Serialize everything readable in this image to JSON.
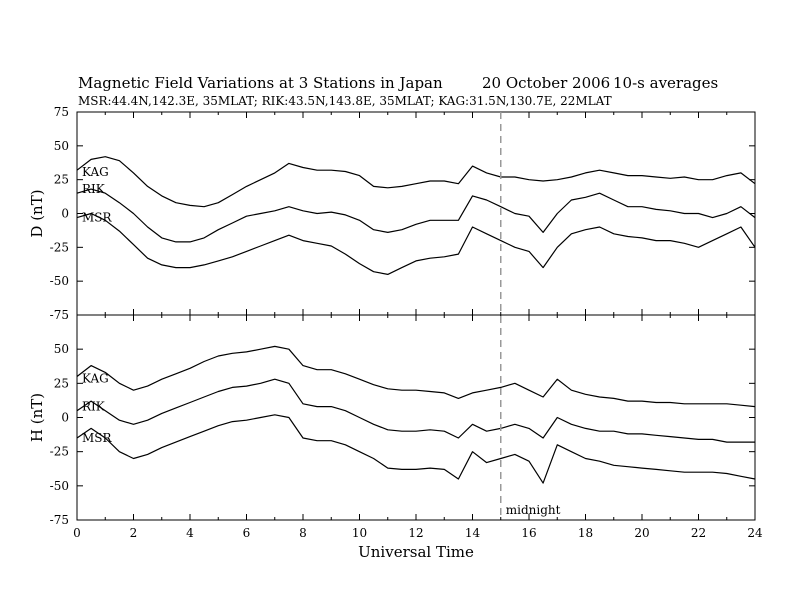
{
  "header": {
    "title": "Magnetic Field Variations at 3 Stations in Japan",
    "date": "20 October 2006",
    "averaging": "10-s averages",
    "stations": "MSR:44.4N,142.3E, 35MLAT;  RIK:43.5N,143.8E, 35MLAT;  KAG:31.5N,130.7E, 22MLAT"
  },
  "annotations": {
    "midnight_label": "midnight",
    "midnight_ut": 15
  },
  "chart_data": [
    {
      "type": "line",
      "ylabel": "D (nT)",
      "xlabel": "",
      "xlim": [
        0,
        24
      ],
      "ylim": [
        -75,
        75
      ],
      "yticks": [
        75,
        50,
        25,
        0,
        -25,
        -50,
        -75
      ],
      "x": [
        0,
        0.5,
        1,
        1.5,
        2,
        2.5,
        3,
        3.5,
        4,
        4.5,
        5,
        5.5,
        6,
        6.5,
        7,
        7.5,
        8,
        8.5,
        9,
        9.5,
        10,
        10.5,
        11,
        11.5,
        12,
        12.5,
        13,
        13.5,
        14,
        14.5,
        15,
        15.5,
        16,
        16.5,
        17,
        17.5,
        18,
        18.5,
        19,
        19.5,
        20,
        20.5,
        21,
        21.5,
        22,
        22.5,
        23,
        23.5,
        24
      ],
      "series": [
        {
          "name": "KAG",
          "values": [
            32,
            40,
            42,
            39,
            30,
            20,
            13,
            8,
            6,
            5,
            8,
            14,
            20,
            25,
            30,
            37,
            34,
            32,
            32,
            31,
            28,
            20,
            19,
            20,
            22,
            24,
            24,
            22,
            35,
            30,
            27,
            27,
            25,
            24,
            25,
            27,
            30,
            32,
            30,
            28,
            28,
            27,
            26,
            27,
            25,
            25,
            28,
            30,
            22
          ]
        },
        {
          "name": "RIK",
          "values": [
            15,
            18,
            15,
            8,
            0,
            -10,
            -18,
            -21,
            -21,
            -18,
            -12,
            -7,
            -2,
            0,
            2,
            5,
            2,
            0,
            1,
            -1,
            -5,
            -12,
            -14,
            -12,
            -8,
            -5,
            -5,
            -5,
            13,
            10,
            5,
            0,
            -2,
            -14,
            0,
            10,
            12,
            15,
            10,
            5,
            5,
            3,
            2,
            0,
            0,
            -3,
            0,
            5,
            -3
          ]
        },
        {
          "name": "MSR",
          "values": [
            -3,
            0,
            -5,
            -13,
            -23,
            -33,
            -38,
            -40,
            -40,
            -38,
            -35,
            -32,
            -28,
            -24,
            -20,
            -16,
            -20,
            -22,
            -24,
            -30,
            -37,
            -43,
            -45,
            -40,
            -35,
            -33,
            -32,
            -30,
            -10,
            -15,
            -20,
            -25,
            -28,
            -40,
            -25,
            -15,
            -12,
            -10,
            -15,
            -17,
            -18,
            -20,
            -20,
            -22,
            -25,
            -20,
            -15,
            -10,
            -25
          ]
        }
      ]
    },
    {
      "type": "line",
      "ylabel": "H (nT)",
      "xlabel": "Universal Time",
      "xlim": [
        0,
        24
      ],
      "ylim": [
        -75,
        75
      ],
      "yticks": [
        50,
        25,
        0,
        -25,
        -50,
        -75
      ],
      "xticks": [
        0,
        2,
        4,
        6,
        8,
        10,
        12,
        14,
        16,
        18,
        20,
        22,
        24
      ],
      "x": [
        0,
        0.5,
        1,
        1.5,
        2,
        2.5,
        3,
        3.5,
        4,
        4.5,
        5,
        5.5,
        6,
        6.5,
        7,
        7.5,
        8,
        8.5,
        9,
        9.5,
        10,
        10.5,
        11,
        11.5,
        12,
        12.5,
        13,
        13.5,
        14,
        14.5,
        15,
        15.5,
        16,
        16.5,
        17,
        17.5,
        18,
        18.5,
        19,
        19.5,
        20,
        20.5,
        21,
        21.5,
        22,
        22.5,
        23,
        23.5,
        24
      ],
      "series": [
        {
          "name": "KAG",
          "values": [
            30,
            38,
            33,
            25,
            20,
            23,
            28,
            32,
            36,
            41,
            45,
            47,
            48,
            50,
            52,
            50,
            38,
            35,
            35,
            32,
            28,
            24,
            21,
            20,
            20,
            19,
            18,
            14,
            18,
            20,
            22,
            25,
            20,
            15,
            28,
            20,
            17,
            15,
            14,
            12,
            12,
            11,
            11,
            10,
            10,
            10,
            10,
            9,
            8
          ]
        },
        {
          "name": "RIK",
          "values": [
            5,
            12,
            5,
            -2,
            -5,
            -2,
            3,
            7,
            11,
            15,
            19,
            22,
            23,
            25,
            28,
            25,
            10,
            8,
            8,
            5,
            0,
            -5,
            -9,
            -10,
            -10,
            -9,
            -10,
            -15,
            -5,
            -10,
            -8,
            -5,
            -8,
            -15,
            0,
            -5,
            -8,
            -10,
            -10,
            -12,
            -12,
            -13,
            -14,
            -15,
            -16,
            -16,
            -18,
            -18,
            -18
          ]
        },
        {
          "name": "MSR",
          "values": [
            -15,
            -8,
            -15,
            -25,
            -30,
            -27,
            -22,
            -18,
            -14,
            -10,
            -6,
            -3,
            -2,
            0,
            2,
            0,
            -15,
            -17,
            -17,
            -20,
            -25,
            -30,
            -37,
            -38,
            -38,
            -37,
            -38,
            -45,
            -25,
            -33,
            -30,
            -27,
            -32,
            -48,
            -20,
            -25,
            -30,
            -32,
            -35,
            -36,
            -37,
            -38,
            -39,
            -40,
            -40,
            -40,
            -41,
            -43,
            -45
          ]
        }
      ]
    }
  ]
}
